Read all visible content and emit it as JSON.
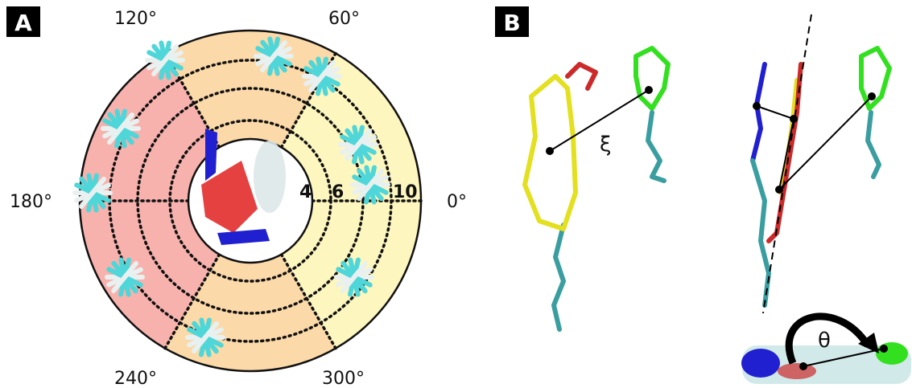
{
  "panel_a": {
    "label": "A",
    "angle_labels": [
      "0°",
      "60°",
      "120°",
      "180°",
      "240°",
      "300°"
    ],
    "radius_labels": [
      "4",
      "6",
      "10"
    ]
  },
  "panel_b": {
    "label": "B",
    "xi": "ξ",
    "theta": "θ"
  }
}
